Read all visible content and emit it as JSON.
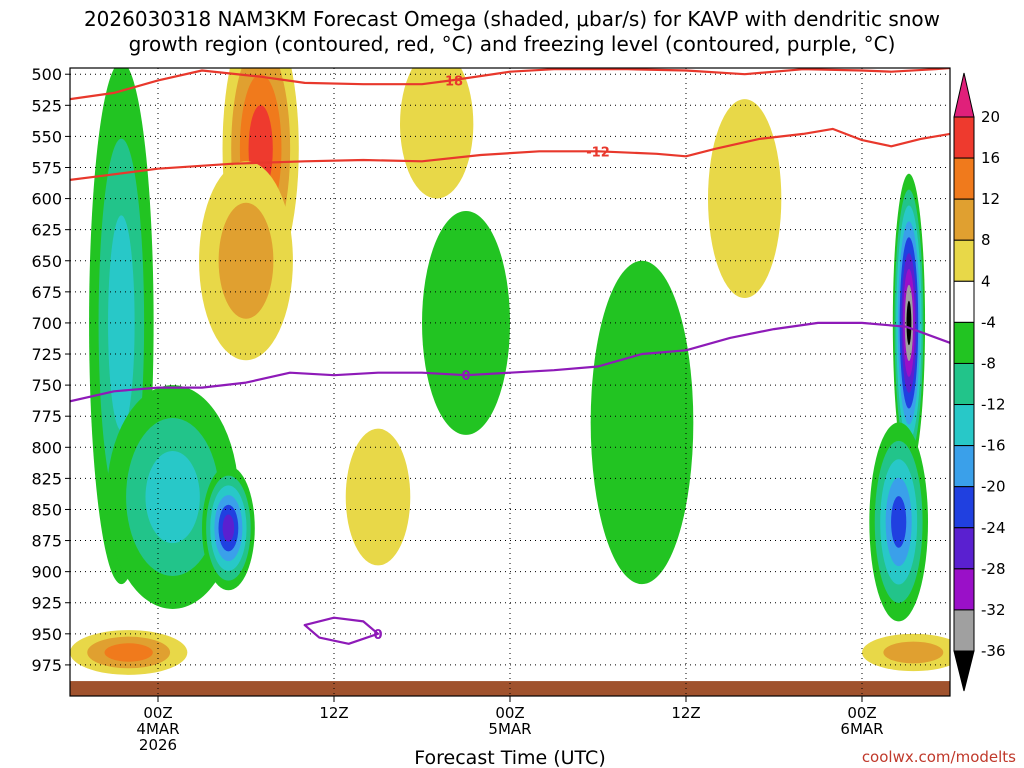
{
  "chart_data": {
    "type": "heatmap",
    "title_lines": [
      "2026030318 NAM3KM Forecast Omega (shaded, μbar/s) for KAVP with dendritic snow",
      "growth region (contoured, red, °C) and freezing level (contoured, purple, °C)"
    ],
    "xlabel": "Forecast Time (UTC)",
    "credit": "coolwx.com/modelts",
    "x_range_hours": [
      -6,
      54
    ],
    "x_ticks": [
      {
        "hour": 0,
        "lines": [
          "00Z",
          "4MAR",
          "2026"
        ]
      },
      {
        "hour": 12,
        "lines": [
          "12Z"
        ]
      },
      {
        "hour": 24,
        "lines": [
          "00Z",
          "5MAR"
        ]
      },
      {
        "hour": 36,
        "lines": [
          "12Z"
        ]
      },
      {
        "hour": 48,
        "lines": [
          "00Z",
          "6MAR"
        ]
      }
    ],
    "y_range_hpa": [
      495,
      1000
    ],
    "y_ticks": [
      500,
      525,
      550,
      575,
      600,
      625,
      650,
      675,
      700,
      725,
      750,
      775,
      800,
      825,
      850,
      875,
      900,
      925,
      950,
      975
    ],
    "colorbar": {
      "levels": [
        "20",
        "16",
        "12",
        "8",
        "4",
        "-4",
        "-8",
        "-12",
        "-16",
        "-20",
        "-24",
        "-28",
        "-32",
        "-36"
      ],
      "bins": [
        {
          "lo": 20,
          "hi": 24,
          "color": "#e0207a"
        },
        {
          "lo": 16,
          "hi": 20,
          "color": "#ee3a2e"
        },
        {
          "lo": 12,
          "hi": 16,
          "color": "#f07a1c"
        },
        {
          "lo": 8,
          "hi": 12,
          "color": "#e0a030"
        },
        {
          "lo": 4,
          "hi": 8,
          "color": "#e8d848"
        },
        {
          "lo": -4,
          "hi": 4,
          "color": "#ffffff"
        },
        {
          "lo": -8,
          "hi": -4,
          "color": "#22c422"
        },
        {
          "lo": -12,
          "hi": -8,
          "color": "#22c48a"
        },
        {
          "lo": -16,
          "hi": -12,
          "color": "#28c8c8"
        },
        {
          "lo": -20,
          "hi": -16,
          "color": "#3aa0ea"
        },
        {
          "lo": -24,
          "hi": -20,
          "color": "#2040e0"
        },
        {
          "lo": -28,
          "hi": -24,
          "color": "#5a20d0"
        },
        {
          "lo": -32,
          "hi": -28,
          "color": "#9a10c8"
        },
        {
          "lo": -36,
          "hi": -32,
          "color": "#a0a0a0"
        },
        {
          "lo": -40,
          "hi": -36,
          "color": "#000000"
        }
      ]
    },
    "omega_features": [
      {
        "name": "upward column left",
        "hour": -2.5,
        "p": 700,
        "dh": 2.2,
        "dp": 210,
        "value": -17
      },
      {
        "name": "upward lower left",
        "hour": 1.0,
        "p": 840,
        "dh": 4.5,
        "dp": 90,
        "value": -16
      },
      {
        "name": "strong upward low-level",
        "hour": 4.8,
        "p": 865,
        "dh": 1.8,
        "dp": 50,
        "value": -28
      },
      {
        "name": "sinking core aloft",
        "hour": 7.0,
        "p": 560,
        "dh": 2.6,
        "dp": 110,
        "value": 20
      },
      {
        "name": "sinking band aloft",
        "hour": 6.0,
        "p": 650,
        "dh": 3.2,
        "dp": 80,
        "value": 12
      },
      {
        "name": "weak sinking aloft",
        "hour": 19.0,
        "p": 540,
        "dh": 2.5,
        "dp": 60,
        "value": 6
      },
      {
        "name": "weak sinking mid",
        "hour": 15.0,
        "p": 840,
        "dh": 2.2,
        "dp": 55,
        "value": 5
      },
      {
        "name": "weak upward mid",
        "hour": 21.0,
        "p": 700,
        "dh": 3.0,
        "dp": 90,
        "value": -6
      },
      {
        "name": "weak upward band",
        "hour": 33.0,
        "p": 780,
        "dh": 3.5,
        "dp": 130,
        "value": -7
      },
      {
        "name": "weak sinking east",
        "hour": 40.0,
        "p": 600,
        "dh": 2.5,
        "dp": 80,
        "value": 5
      },
      {
        "name": "strong upward east",
        "hour": 51.2,
        "p": 700,
        "dh": 1.1,
        "dp": 120,
        "value": -38
      },
      {
        "name": "upward east low-level",
        "hour": 50.5,
        "p": 860,
        "dh": 2.0,
        "dp": 80,
        "value": -22
      },
      {
        "name": "surface sinking west",
        "hour": -2.0,
        "p": 965,
        "dh": 4.0,
        "dp": 18,
        "value": 16
      },
      {
        "name": "surface sinking east",
        "hour": 51.5,
        "p": 965,
        "dh": 3.5,
        "dp": 15,
        "value": 13
      }
    ],
    "dgz_contours": [
      {
        "label": "-18",
        "points": [
          [
            -6,
            520
          ],
          [
            -3,
            515
          ],
          [
            0,
            505
          ],
          [
            3,
            497
          ],
          [
            7,
            502
          ],
          [
            10,
            507
          ],
          [
            14,
            508
          ],
          [
            18,
            508
          ],
          [
            20,
            505
          ],
          [
            24,
            498
          ],
          [
            27,
            496
          ],
          [
            32,
            496
          ],
          [
            36,
            497
          ],
          [
            40,
            500
          ],
          [
            44,
            496
          ],
          [
            48,
            497
          ],
          [
            50,
            498
          ],
          [
            53,
            496
          ],
          [
            54,
            495
          ]
        ]
      },
      {
        "label": "-12",
        "points": [
          [
            -6,
            585
          ],
          [
            -4,
            582
          ],
          [
            0,
            576
          ],
          [
            5,
            572
          ],
          [
            10,
            570
          ],
          [
            14,
            569
          ],
          [
            18,
            570
          ],
          [
            22,
            565
          ],
          [
            26,
            562
          ],
          [
            30,
            562
          ],
          [
            34,
            564
          ],
          [
            36,
            566
          ],
          [
            38,
            560
          ],
          [
            41,
            552
          ],
          [
            44,
            548
          ],
          [
            46,
            544
          ],
          [
            48,
            553
          ],
          [
            50,
            558
          ],
          [
            52,
            552
          ],
          [
            54,
            548
          ]
        ]
      }
    ],
    "freezing_contour": {
      "label": "0",
      "points": [
        [
          -6,
          763
        ],
        [
          -3,
          755
        ],
        [
          0,
          752
        ],
        [
          3,
          752
        ],
        [
          6,
          748
        ],
        [
          9,
          740
        ],
        [
          12,
          742
        ],
        [
          15,
          740
        ],
        [
          18,
          740
        ],
        [
          21,
          742
        ],
        [
          24,
          740
        ],
        [
          27,
          738
        ],
        [
          30,
          735
        ],
        [
          33,
          725
        ],
        [
          36,
          722
        ],
        [
          39,
          712
        ],
        [
          42,
          705
        ],
        [
          45,
          700
        ],
        [
          48,
          700
        ],
        [
          51,
          703
        ],
        [
          54,
          716
        ]
      ]
    },
    "freezing_low": {
      "label": "0",
      "points": [
        [
          10,
          943
        ],
        [
          12,
          937
        ],
        [
          14,
          940
        ],
        [
          15,
          950
        ],
        [
          13,
          958
        ],
        [
          11,
          953
        ]
      ]
    }
  }
}
